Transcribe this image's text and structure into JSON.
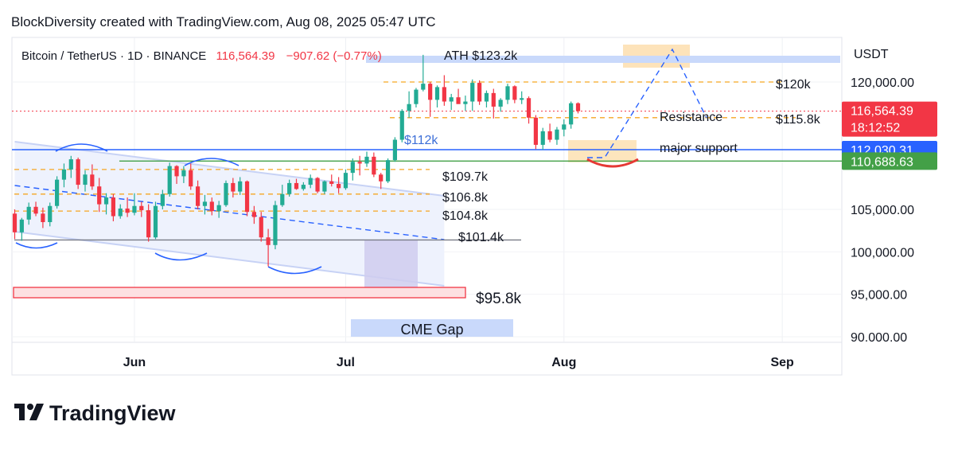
{
  "header": {
    "created_by": "BlockDiversity created with TradingView.com, Aug 08, 2025 05:47 UTC"
  },
  "symbol": {
    "name": "Bitcoin / TetherUS · 1D · BINANCE",
    "last": "116,564.39",
    "change": "−907.62 (−0.77%)"
  },
  "currency": "USDT",
  "brand": {
    "name": "TradingView"
  },
  "colors": {
    "up": "#22ab94",
    "down": "#f23645",
    "support": "#2962ff",
    "green_line": "#43a047",
    "resistance": "#f5a623",
    "channel": "#c7d2f5",
    "label_blue": "#3d6fd8"
  },
  "chart_data": {
    "type": "candlestick",
    "y_scale": {
      "min": 88000,
      "max": 126000
    },
    "y_ticks": [
      {
        "value": 120000,
        "label": "120,000.00"
      },
      {
        "value": 105000,
        "label": "105,000.00"
      },
      {
        "value": 100000,
        "label": "100,000.00"
      },
      {
        "value": 95000,
        "label": "95,000.00"
      },
      {
        "value": 90000,
        "label": "90.000.00"
      }
    ],
    "x_ticks": [
      {
        "index": 17,
        "label": "Jun"
      },
      {
        "index": 47,
        "label": "Jul"
      },
      {
        "index": 78,
        "label": "Aug"
      },
      {
        "index": 109,
        "label": "Sep"
      }
    ],
    "price_badges": [
      {
        "value": 116564.39,
        "label": "116,564.39",
        "sub": "18:12:52",
        "color": "#f23645"
      },
      {
        "value": 112030.31,
        "label": "112,030.31",
        "color": "#2962ff"
      },
      {
        "value": 110688.63,
        "label": "110,688.63",
        "color": "#43a047"
      }
    ],
    "levels": [
      {
        "value": 120000,
        "label": "$120k",
        "style": "dashed-orange"
      },
      {
        "value": 115800,
        "label": "$115.8k",
        "style": "dashed-orange"
      },
      {
        "value": 109700,
        "label": "$109.7k",
        "style": "dashed-orange"
      },
      {
        "value": 106800,
        "label": "$106.8k",
        "style": "dashed-orange"
      },
      {
        "value": 104800,
        "label": "$104.8k",
        "style": "dashed-orange"
      },
      {
        "value": 101400,
        "label": "$101.4k",
        "style": "solid-gray"
      },
      {
        "value": 95800,
        "label": "$95.8k",
        "style": "red-box"
      },
      {
        "value": 123200,
        "label": "ATH $123.2k",
        "style": "blue-band"
      },
      {
        "value": 112000,
        "label": "$112k",
        "style": "solid-blue"
      }
    ],
    "annotations": [
      "Resistance",
      "major support",
      "CME Gap"
    ],
    "candles": [
      [
        104500,
        105000,
        101500,
        102300
      ],
      [
        102300,
        104000,
        101300,
        103800
      ],
      [
        103800,
        105800,
        103200,
        105300
      ],
      [
        105300,
        105900,
        104200,
        104500
      ],
      [
        104500,
        105200,
        102800,
        103500
      ],
      [
        103500,
        105800,
        103000,
        105400
      ],
      [
        105400,
        108900,
        105100,
        108500
      ],
      [
        108500,
        110400,
        107600,
        109700
      ],
      [
        109700,
        111300,
        108700,
        110900
      ],
      [
        110900,
        111100,
        107400,
        107900
      ],
      [
        107900,
        109600,
        107100,
        109100
      ],
      [
        109100,
        110300,
        107300,
        107700
      ],
      [
        107700,
        108700,
        104700,
        105600
      ],
      [
        105600,
        106900,
        104400,
        106400
      ],
      [
        106400,
        106800,
        103600,
        104200
      ],
      [
        104200,
        105600,
        103900,
        105100
      ],
      [
        105100,
        106400,
        104100,
        104600
      ],
      [
        104600,
        106900,
        104300,
        105400
      ],
      [
        105400,
        105900,
        104100,
        104900
      ],
      [
        104900,
        105600,
        101200,
        101700
      ],
      [
        101700,
        105900,
        101500,
        105400
      ],
      [
        105400,
        107300,
        105000,
        106800
      ],
      [
        106800,
        110500,
        106500,
        110100
      ],
      [
        110100,
        110200,
        108000,
        108900
      ],
      [
        108900,
        110100,
        108100,
        109600
      ],
      [
        109600,
        110400,
        107300,
        107700
      ],
      [
        107700,
        108400,
        105000,
        105400
      ],
      [
        105400,
        106700,
        104400,
        105900
      ],
      [
        105900,
        106400,
        104300,
        104800
      ],
      [
        104800,
        106000,
        104000,
        105500
      ],
      [
        105500,
        108400,
        105300,
        108100
      ],
      [
        108100,
        108700,
        106400,
        107100
      ],
      [
        107100,
        108800,
        106700,
        108300
      ],
      [
        108300,
        108400,
        104200,
        104700
      ],
      [
        104700,
        105400,
        103300,
        104100
      ],
      [
        104100,
        104700,
        101200,
        101700
      ],
      [
        101700,
        102700,
        98300,
        100800
      ],
      [
        100800,
        106000,
        100300,
        105500
      ],
      [
        105500,
        107900,
        105300,
        106800
      ],
      [
        106800,
        108500,
        106500,
        108100
      ],
      [
        108100,
        108600,
        107300,
        107400
      ],
      [
        107400,
        108200,
        107200,
        107900
      ],
      [
        107900,
        109100,
        107500,
        108700
      ],
      [
        108700,
        108800,
        106900,
        107100
      ],
      [
        107100,
        108400,
        106800,
        108300
      ],
      [
        108300,
        109100,
        107700,
        108000
      ],
      [
        108000,
        108800,
        106900,
        107500
      ],
      [
        107500,
        109700,
        107300,
        109300
      ],
      [
        109300,
        111000,
        108400,
        110600
      ],
      [
        110600,
        111300,
        109000,
        110400
      ],
      [
        110400,
        111800,
        110000,
        111200
      ],
      [
        111200,
        111700,
        108800,
        109100
      ],
      [
        109100,
        109300,
        107400,
        108300
      ],
      [
        108300,
        111000,
        108100,
        110800
      ],
      [
        110800,
        113500,
        110600,
        113200
      ],
      [
        113200,
        116800,
        112900,
        116600
      ],
      [
        116600,
        118900,
        115800,
        117400
      ],
      [
        117400,
        119300,
        117000,
        119100
      ],
      [
        119100,
        123200,
        118900,
        119800
      ],
      [
        119800,
        120000,
        115900,
        117900
      ],
      [
        117900,
        119600,
        117000,
        119400
      ],
      [
        119400,
        120800,
        117200,
        117700
      ],
      [
        117700,
        118600,
        116700,
        118200
      ],
      [
        118200,
        119200,
        117600,
        117400
      ],
      [
        117400,
        118400,
        116600,
        117700
      ],
      [
        117700,
        120300,
        116600,
        119900
      ],
      [
        119900,
        120200,
        117300,
        117700
      ],
      [
        117700,
        119000,
        117000,
        118700
      ],
      [
        118700,
        119200,
        115700,
        117100
      ],
      [
        117100,
        118100,
        116500,
        117900
      ],
      [
        117900,
        119800,
        117400,
        119500
      ],
      [
        119500,
        119600,
        117500,
        117900
      ],
      [
        117900,
        118900,
        117400,
        118100
      ],
      [
        118100,
        118300,
        115100,
        115800
      ],
      [
        115800,
        116100,
        112100,
        112600
      ],
      [
        112600,
        114600,
        112000,
        114200
      ],
      [
        114200,
        115100,
        112900,
        113200
      ],
      [
        113200,
        114700,
        112600,
        114400
      ],
      [
        114400,
        115600,
        113600,
        115000
      ],
      [
        115000,
        117700,
        114500,
        117500
      ],
      [
        117500,
        117600,
        116300,
        116564
      ]
    ]
  }
}
